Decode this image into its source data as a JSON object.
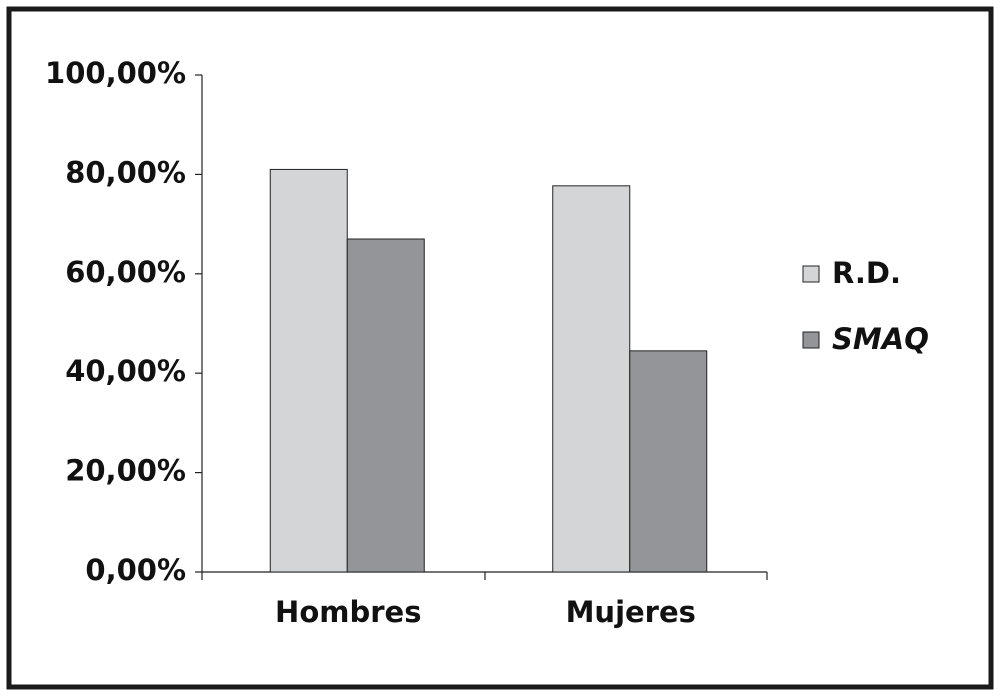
{
  "chart_data": {
    "type": "bar",
    "categories": [
      "Hombres",
      "Mujeres"
    ],
    "series": [
      {
        "name": "R.D.",
        "color": "#d4d5d7",
        "values": [
          81,
          77.7
        ]
      },
      {
        "name": "SMAQ",
        "color": "#939598",
        "values": [
          67,
          44.5
        ]
      }
    ],
    "ylim": [
      0,
      100
    ],
    "yticks": [
      {
        "value": 0,
        "label": "0,00%"
      },
      {
        "value": 20,
        "label": "20,00%"
      },
      {
        "value": 40,
        "label": "40,00%"
      },
      {
        "value": 60,
        "label": "60,00%"
      },
      {
        "value": 80,
        "label": "80,00%"
      },
      {
        "value": 100,
        "label": "100,00%"
      }
    ],
    "grid": false,
    "legend": "right"
  }
}
